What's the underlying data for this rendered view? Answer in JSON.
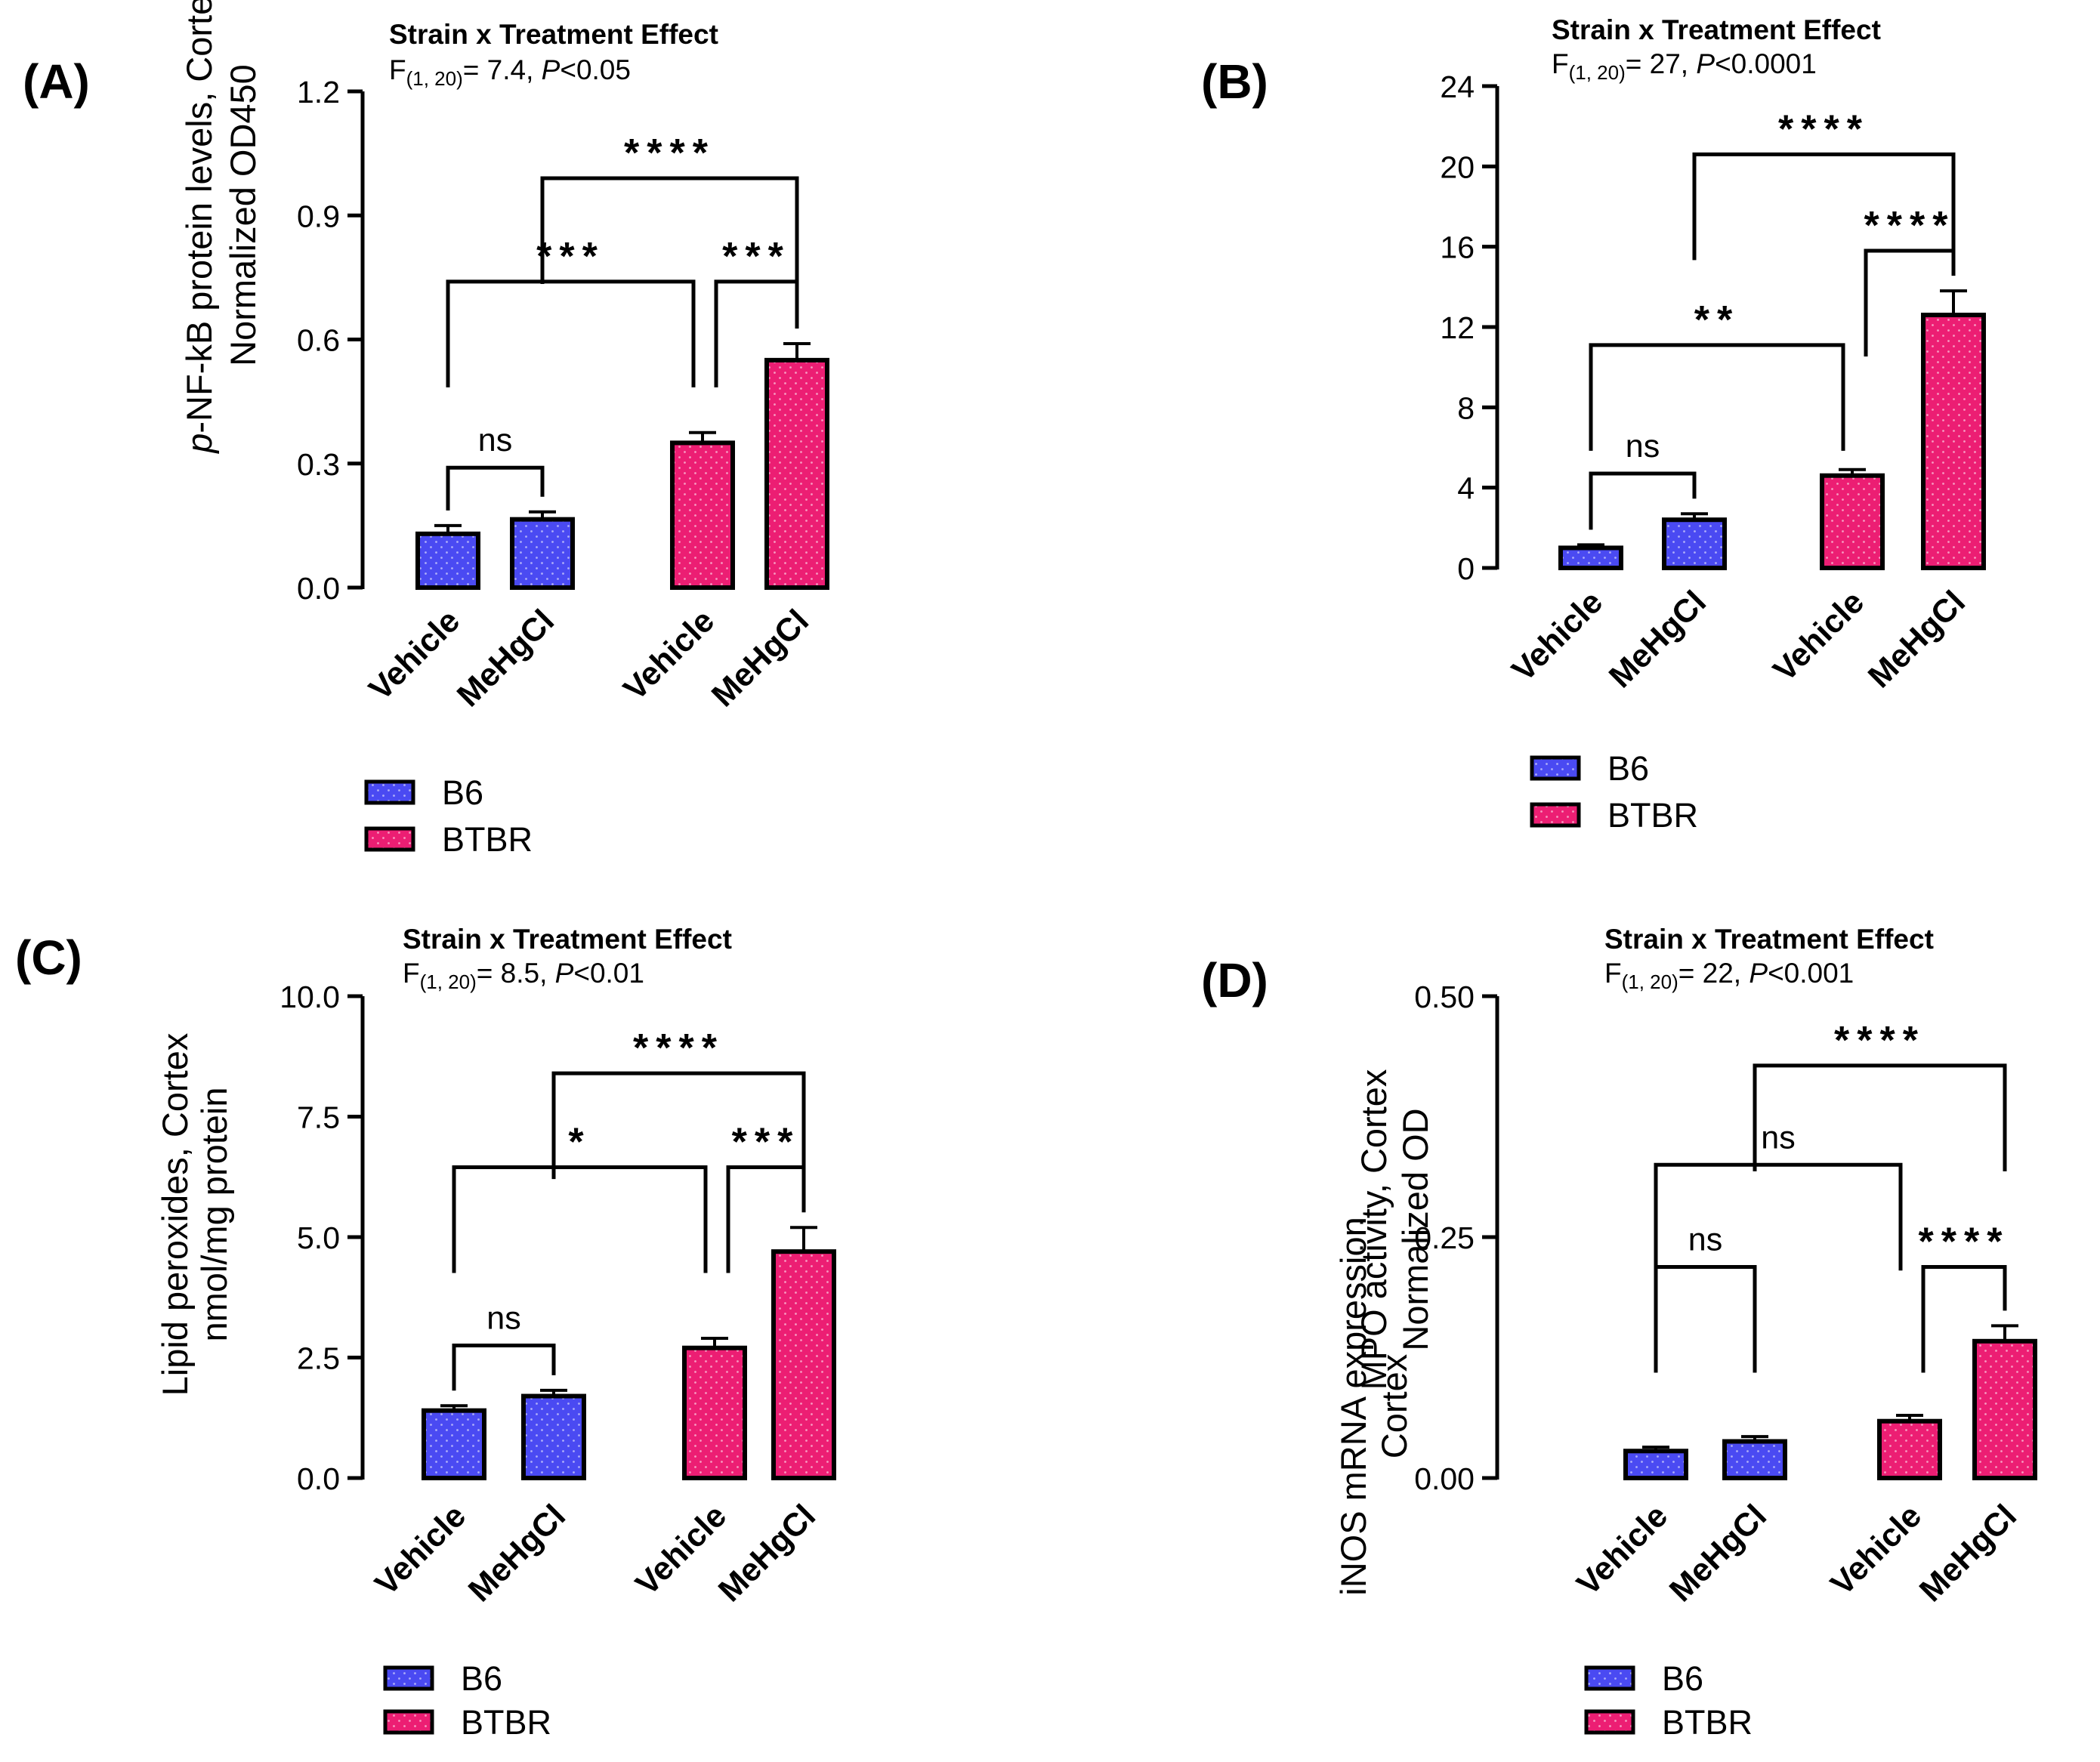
{
  "colors": {
    "b6": "#4a4af2",
    "btbr": "#ec1e73",
    "outline": "#000000"
  },
  "chart_data": [
    {
      "panel": "(A)",
      "type": "bar",
      "effect_title": "Strain x Treatment Effect",
      "stat_prefix": "F",
      "stat_df": "(1, 20)",
      "stat_value": "= 7.4, ",
      "p_symbol": "P",
      "p_rest": "<0.05",
      "ylabel_lines": [
        [
          {
            "text": "p",
            "italic": true
          },
          {
            "text": "-NF-kB protein levels, Cortex"
          }
        ],
        [
          {
            "text": "Normalized OD450"
          }
        ]
      ],
      "ylim": [
        0,
        1.2
      ],
      "yticks": [
        "0.0",
        "0.3",
        "0.6",
        "0.9",
        "1.2"
      ],
      "categories": [
        "Vehicle",
        "MeHgCl",
        "Vehicle",
        "MeHgCl"
      ],
      "strains": [
        "B6",
        "B6",
        "BTBR",
        "BTBR"
      ],
      "values": [
        0.13,
        0.165,
        0.35,
        0.55
      ],
      "errors": [
        0.02,
        0.018,
        0.025,
        0.04
      ],
      "legend": [
        "B6",
        "BTBR"
      ],
      "comparisons": [
        {
          "from": 0,
          "to": 1,
          "y": 0.29,
          "label": "ns"
        },
        {
          "from": 0,
          "to": 2,
          "y": 0.74,
          "label": "***"
        },
        {
          "from": 2,
          "to": 3,
          "y": 0.74,
          "label": "***"
        },
        {
          "from": 1,
          "to": 3,
          "y": 0.99,
          "label": "****"
        }
      ]
    },
    {
      "panel": "(B)",
      "type": "bar",
      "effect_title": "Strain x Treatment Effect",
      "stat_prefix": "F",
      "stat_df": "(1, 20)",
      "stat_value": "= 27, ",
      "p_symbol": "P",
      "p_rest": "<0.0001",
      "ylabel_lines": [
        [
          {
            "text": "iNOS mRNA expression"
          }
        ],
        [
          {
            "text": "Cortex"
          }
        ]
      ],
      "ylim": [
        0,
        24
      ],
      "yticks": [
        "0",
        "4",
        "8",
        "12",
        "16",
        "20",
        "24"
      ],
      "categories": [
        "Vehicle",
        "MeHgCl",
        "Vehicle",
        "MeHgCl"
      ],
      "strains": [
        "B6",
        "B6",
        "BTBR",
        "BTBR"
      ],
      "values": [
        1.0,
        2.4,
        4.6,
        12.6
      ],
      "errors": [
        0.15,
        0.3,
        0.3,
        1.2
      ],
      "legend": [
        "B6",
        "BTBR"
      ],
      "comparisons": [
        {
          "from": 0,
          "to": 1,
          "y": 4.7,
          "label": "ns"
        },
        {
          "from": 0,
          "to": 2,
          "y": 11.1,
          "label": "**"
        },
        {
          "from": 2,
          "to": 3,
          "y": 15.8,
          "label": "****"
        },
        {
          "from": 1,
          "to": 3,
          "y": 20.6,
          "label": "****"
        }
      ]
    },
    {
      "panel": "(C)",
      "type": "bar",
      "effect_title": "Strain x Treatment Effect",
      "stat_prefix": "F",
      "stat_df": "(1, 20)",
      "stat_value": "= 8.5, ",
      "p_symbol": "P",
      "p_rest": "<0.01",
      "ylabel_lines": [
        [
          {
            "text": "Lipid peroxides, Cortex"
          }
        ],
        [
          {
            "text": "nmol/mg protein"
          }
        ]
      ],
      "ylim": [
        0,
        10
      ],
      "yticks": [
        "0.0",
        "2.5",
        "5.0",
        "7.5",
        "10.0"
      ],
      "categories": [
        "Vehicle",
        "MeHgCl",
        "Vehicle",
        "MeHgCl"
      ],
      "strains": [
        "B6",
        "B6",
        "BTBR",
        "BTBR"
      ],
      "values": [
        1.4,
        1.7,
        2.7,
        4.7
      ],
      "errors": [
        0.1,
        0.12,
        0.2,
        0.5
      ],
      "legend": [
        "B6",
        "BTBR"
      ],
      "comparisons": [
        {
          "from": 0,
          "to": 1,
          "y": 2.75,
          "label": "ns"
        },
        {
          "from": 0,
          "to": 2,
          "y": 6.45,
          "label": "*"
        },
        {
          "from": 2,
          "to": 3,
          "y": 6.45,
          "label": "***"
        },
        {
          "from": 1,
          "to": 3,
          "y": 8.4,
          "label": "****"
        }
      ]
    },
    {
      "panel": "(D)",
      "type": "bar",
      "effect_title": "Strain x Treatment Effect",
      "stat_prefix": "F",
      "stat_df": "(1, 20)",
      "stat_value": "= 22, ",
      "p_symbol": "P",
      "p_rest": "<0.001",
      "ylabel_lines": [
        [
          {
            "text": "MPO activity, Cortex"
          }
        ],
        [
          {
            "text": "Normalized OD"
          }
        ]
      ],
      "ylim": [
        0,
        0.5
      ],
      "yticks": [
        "0.00",
        "0.25",
        "0.50"
      ],
      "categories": [
        "Vehicle",
        "MeHgCl",
        "Vehicle",
        "MeHgCl"
      ],
      "strains": [
        "B6",
        "B6",
        "BTBR",
        "BTBR"
      ],
      "values": [
        0.028,
        0.038,
        0.059,
        0.142
      ],
      "errors": [
        0.004,
        0.005,
        0.006,
        0.016
      ],
      "legend": [
        "B6",
        "BTBR"
      ],
      "comparisons": [
        {
          "from": 0,
          "to": 1,
          "y": 0.219,
          "label": "ns"
        },
        {
          "from": 2,
          "to": 3,
          "y": 0.219,
          "label": "****"
        },
        {
          "from": 0,
          "to": 2,
          "y": 0.325,
          "label": "ns"
        },
        {
          "from": 1,
          "to": 3,
          "y": 0.428,
          "label": "****"
        }
      ]
    }
  ]
}
